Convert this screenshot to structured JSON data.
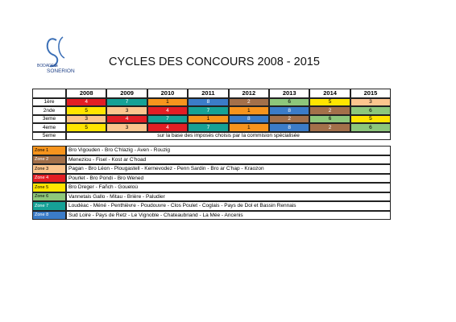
{
  "logo": {
    "lines": [
      "BODADEG",
      "AR",
      "SONERION"
    ]
  },
  "title": "CYCLES DES CONCOURS 2008 - 2015",
  "table": {
    "header": [
      "2008",
      "2009",
      "2010",
      "2011",
      "2012",
      "2013",
      "2014",
      "2015"
    ],
    "rows": [
      {
        "label": "1ère",
        "cells": [
          "4",
          "7",
          "1",
          "8",
          "2",
          "6",
          "5",
          "3"
        ]
      },
      {
        "label": "2nde",
        "cells": [
          "5",
          "3",
          "4",
          "7",
          "1",
          "8",
          "2",
          "6"
        ]
      },
      {
        "label": "3eme",
        "cells": [
          "3",
          "4",
          "7",
          "1",
          "8",
          "2",
          "6",
          "5"
        ]
      },
      {
        "label": "4eme",
        "cells": [
          "5",
          "3",
          "4",
          "7",
          "1",
          "8",
          "2",
          "6"
        ]
      }
    ],
    "note_row": {
      "label": "5eme",
      "text": "sur la base des imposés choisis par la commision spécialisée"
    }
  },
  "zones": [
    {
      "label": "Zone 1",
      "color": "#f7941d",
      "text": "Bro Vigouden - Bro C'hlazig - Aven - Rouzig"
    },
    {
      "label": "Zone 2",
      "color": "#a3704a",
      "text": "Meneziou - Fisel - Kost ar C'hoad"
    },
    {
      "label": "Zone 3",
      "color": "#fcc58e",
      "text": "Pagan - Bro Léon - Plougastell - Kernevodez - Penn Sardin - Bro ar C'hap - Kraozon"
    },
    {
      "label": "Zone 4",
      "color": "#e31e24",
      "text": "Pourlet - Bro Pondi - Bro Wened"
    },
    {
      "label": "Zone 5",
      "color": "#ffe500",
      "text": "Bro Dreger - Fañch - Goueloù"
    },
    {
      "label": "Zone 6",
      "color": "#8dc77b",
      "text": "Vannetais Gallo - Mitau - Brière - Paludier"
    },
    {
      "label": "Zone 7",
      "color": "#16a196",
      "text": "Loudéac - Méné - Penthièvre - Poudouvre - Clos Poulet - Coglais - Pays de Dol et Bassin Rennais"
    },
    {
      "label": "Zone 8",
      "color": "#3b7cc8",
      "text": "Sud Loire - Pays de Retz - Le Vignoble - Chateaubriand - La Mée - Ancenis"
    }
  ]
}
